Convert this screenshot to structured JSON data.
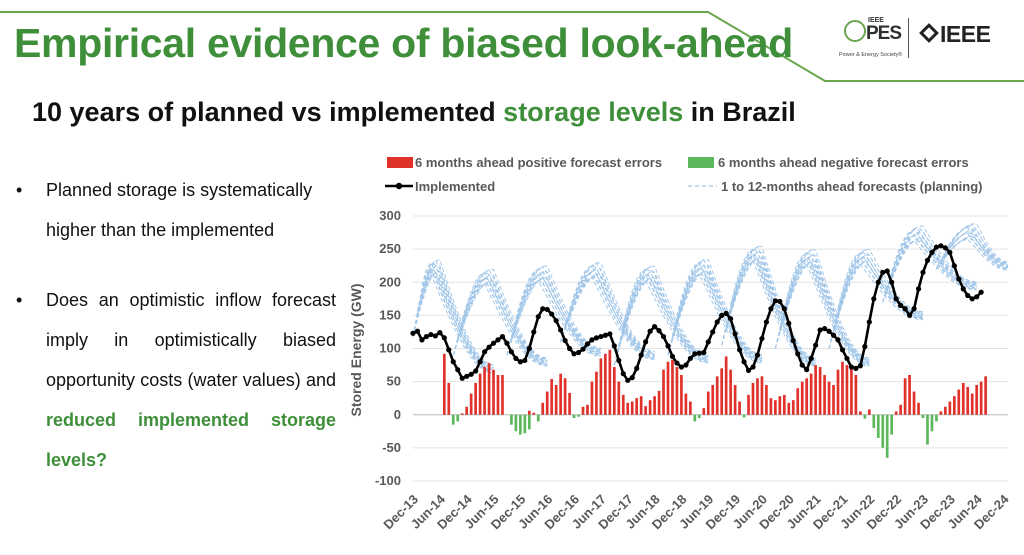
{
  "header": {
    "title": "Empirical evidence of biased look-ahead",
    "logo_pes": {
      "top": "IEEE",
      "name": "PES",
      "sub": "Power & Energy Society®"
    },
    "logo_ieee": "IEEE"
  },
  "subtitle": {
    "part1": "10 years of planned vs implemented ",
    "part2": "storage levels",
    "part3": " in Brazil"
  },
  "bullets": {
    "b1": "Planned storage is systematically higher than the implemented",
    "b2_text": "Does an optimistic inflow forecast imply in optimistically biased opportunity costs (water values) and ",
    "b2_highlight": "reduced implemented storage levels?"
  },
  "colors": {
    "title_green": "#3f8f3a",
    "positive": "#e0312b",
    "negative": "#5cb85c",
    "implemented": "#000000",
    "forecast": "#9fc5e8"
  },
  "chart_data": {
    "type": "bar+line",
    "ylabel": "Stored Energy (GW)",
    "ylim": [
      -100,
      300
    ],
    "yticks": [
      -100,
      -50,
      0,
      50,
      100,
      150,
      200,
      250,
      300
    ],
    "xlabels": [
      "Dec-13",
      "Jun-14",
      "Dec-14",
      "Jun-15",
      "Dec-15",
      "Jun-16",
      "Dec-16",
      "Jun-17",
      "Dec-17",
      "Jun-18",
      "Dec-18",
      "Jun-19",
      "Dec-19",
      "Jun-20",
      "Dec-20",
      "Jun-21",
      "Dec-21",
      "Jun-22",
      "Dec-22",
      "Jun-23",
      "Dec-23",
      "Jun-24",
      "Dec-24"
    ],
    "month_range": {
      "first": "Dec-13",
      "last": "Dec-24",
      "months": 133
    },
    "legend": {
      "positive": "6 months ahead positive forecast errors",
      "negative": "6 months ahead negative forecast errors",
      "implemented": "Implemented",
      "forecast": "1 to 12-months ahead forecasts (planning)"
    },
    "implemented": [
      123,
      126,
      113,
      118,
      121,
      119,
      124,
      116,
      98,
      80,
      68,
      55,
      58,
      61,
      66,
      80,
      95,
      102,
      108,
      113,
      118,
      108,
      95,
      85,
      80,
      82,
      100,
      125,
      148,
      160,
      159,
      152,
      142,
      128,
      112,
      100,
      92,
      94,
      99,
      107,
      113,
      116,
      118,
      120,
      122,
      104,
      82,
      62,
      52,
      56,
      70,
      90,
      110,
      126,
      133,
      127,
      118,
      104,
      88,
      78,
      72,
      75,
      85,
      92,
      93,
      94,
      110,
      125,
      140,
      150,
      153,
      145,
      122,
      98,
      80,
      67,
      72,
      90,
      115,
      140,
      160,
      172,
      171,
      160,
      138,
      112,
      92,
      75,
      68,
      85,
      105,
      128,
      130,
      126,
      120,
      113,
      98,
      85,
      72,
      70,
      74,
      103,
      140,
      175,
      200,
      215,
      217,
      200,
      175,
      165,
      160,
      150,
      160,
      190,
      215,
      233,
      245,
      253,
      255,
      252,
      245,
      225,
      205,
      190,
      180,
      175,
      178,
      185
    ],
    "positive_errors": [
      {
        "month": 7,
        "value": 92
      },
      {
        "month": 8,
        "value": 48
      },
      {
        "month": 11,
        "value": 2
      },
      {
        "month": 12,
        "value": 12
      },
      {
        "month": 13,
        "value": 32
      },
      {
        "month": 14,
        "value": 48
      },
      {
        "month": 15,
        "value": 62
      },
      {
        "month": 16,
        "value": 72
      },
      {
        "month": 17,
        "value": 78
      },
      {
        "month": 18,
        "value": 68
      },
      {
        "month": 19,
        "value": 60
      },
      {
        "month": 20,
        "value": 60
      },
      {
        "month": 26,
        "value": 6
      },
      {
        "month": 27,
        "value": 3
      },
      {
        "month": 29,
        "value": 18
      },
      {
        "month": 30,
        "value": 35
      },
      {
        "month": 31,
        "value": 54
      },
      {
        "month": 32,
        "value": 45
      },
      {
        "month": 33,
        "value": 62
      },
      {
        "month": 34,
        "value": 55
      },
      {
        "month": 35,
        "value": 33
      },
      {
        "month": 38,
        "value": 12
      },
      {
        "month": 39,
        "value": 15
      },
      {
        "month": 40,
        "value": 50
      },
      {
        "month": 41,
        "value": 65
      },
      {
        "month": 42,
        "value": 85
      },
      {
        "month": 43,
        "value": 92
      },
      {
        "month": 44,
        "value": 98
      },
      {
        "month": 45,
        "value": 72
      },
      {
        "month": 46,
        "value": 50
      },
      {
        "month": 47,
        "value": 30
      },
      {
        "month": 48,
        "value": 18
      },
      {
        "month": 49,
        "value": 20
      },
      {
        "month": 50,
        "value": 25
      },
      {
        "month": 51,
        "value": 28
      },
      {
        "month": 52,
        "value": 13
      },
      {
        "month": 53,
        "value": 22
      },
      {
        "month": 54,
        "value": 28
      },
      {
        "month": 55,
        "value": 36
      },
      {
        "month": 56,
        "value": 68
      },
      {
        "month": 57,
        "value": 80
      },
      {
        "month": 58,
        "value": 83
      },
      {
        "month": 59,
        "value": 72
      },
      {
        "month": 60,
        "value": 60
      },
      {
        "month": 61,
        "value": 32
      },
      {
        "month": 62,
        "value": 20
      },
      {
        "month": 65,
        "value": 10
      },
      {
        "month": 66,
        "value": 35
      },
      {
        "month": 67,
        "value": 45
      },
      {
        "month": 68,
        "value": 58
      },
      {
        "month": 69,
        "value": 70
      },
      {
        "month": 70,
        "value": 88
      },
      {
        "month": 71,
        "value": 68
      },
      {
        "month": 72,
        "value": 45
      },
      {
        "month": 73,
        "value": 20
      },
      {
        "month": 75,
        "value": 30
      },
      {
        "month": 76,
        "value": 48
      },
      {
        "month": 77,
        "value": 55
      },
      {
        "month": 78,
        "value": 58
      },
      {
        "month": 79,
        "value": 45
      },
      {
        "month": 80,
        "value": 25
      },
      {
        "month": 81,
        "value": 22
      },
      {
        "month": 82,
        "value": 28
      },
      {
        "month": 83,
        "value": 30
      },
      {
        "month": 84,
        "value": 18
      },
      {
        "month": 85,
        "value": 22
      },
      {
        "month": 86,
        "value": 40
      },
      {
        "month": 87,
        "value": 50
      },
      {
        "month": 88,
        "value": 55
      },
      {
        "month": 89,
        "value": 62
      },
      {
        "month": 90,
        "value": 75
      },
      {
        "month": 91,
        "value": 72
      },
      {
        "month": 92,
        "value": 60
      },
      {
        "month": 93,
        "value": 50
      },
      {
        "month": 94,
        "value": 45
      },
      {
        "month": 95,
        "value": 68
      },
      {
        "month": 96,
        "value": 80
      },
      {
        "month": 97,
        "value": 75
      },
      {
        "month": 98,
        "value": 70
      },
      {
        "month": 99,
        "value": 60
      },
      {
        "month": 100,
        "value": 5
      },
      {
        "month": 102,
        "value": 8
      },
      {
        "month": 108,
        "value": 5
      },
      {
        "month": 109,
        "value": 15
      },
      {
        "month": 110,
        "value": 55
      },
      {
        "month": 111,
        "value": 60
      },
      {
        "month": 112,
        "value": 35
      },
      {
        "month": 113,
        "value": 18
      },
      {
        "month": 118,
        "value": 5
      },
      {
        "month": 119,
        "value": 12
      },
      {
        "month": 120,
        "value": 20
      },
      {
        "month": 121,
        "value": 28
      },
      {
        "month": 122,
        "value": 38
      },
      {
        "month": 123,
        "value": 48
      },
      {
        "month": 124,
        "value": 42
      },
      {
        "month": 125,
        "value": 32
      },
      {
        "month": 126,
        "value": 45
      },
      {
        "month": 127,
        "value": 50
      },
      {
        "month": 128,
        "value": 58
      }
    ],
    "negative_errors": [
      {
        "month": 9,
        "value": -15
      },
      {
        "month": 10,
        "value": -10
      },
      {
        "month": 22,
        "value": -15
      },
      {
        "month": 23,
        "value": -25
      },
      {
        "month": 24,
        "value": -30
      },
      {
        "month": 25,
        "value": -28
      },
      {
        "month": 26,
        "value": -22
      },
      {
        "month": 28,
        "value": -10
      },
      {
        "month": 36,
        "value": -5
      },
      {
        "month": 37,
        "value": -3
      },
      {
        "month": 63,
        "value": -10
      },
      {
        "month": 64,
        "value": -5
      },
      {
        "month": 74,
        "value": -4
      },
      {
        "month": 101,
        "value": -6
      },
      {
        "month": 103,
        "value": -20
      },
      {
        "month": 104,
        "value": -35
      },
      {
        "month": 105,
        "value": -50
      },
      {
        "month": 106,
        "value": -65
      },
      {
        "month": 107,
        "value": -30
      },
      {
        "month": 114,
        "value": -5
      },
      {
        "month": 115,
        "value": -45
      },
      {
        "month": 116,
        "value": -25
      },
      {
        "month": 117,
        "value": -10
      }
    ],
    "forecast_family": {
      "description_values": "planning forecast curves, 1 to 12 months ahead, one family per year",
      "families": [
        {
          "start_month": 0,
          "start_value": 118,
          "peak_month": 5,
          "peak_value": 225,
          "end_month": 18,
          "end_value": 70,
          "n_curves": 12
        },
        {
          "start_month": 9,
          "start_value": 90,
          "peak_month": 17,
          "peak_value": 210,
          "end_month": 30,
          "end_value": 80,
          "n_curves": 12
        },
        {
          "start_month": 21,
          "start_value": 90,
          "peak_month": 29,
          "peak_value": 215,
          "end_month": 42,
          "end_value": 95,
          "n_curves": 12
        },
        {
          "start_month": 33,
          "start_value": 110,
          "peak_month": 41,
          "peak_value": 220,
          "end_month": 54,
          "end_value": 90,
          "n_curves": 12
        },
        {
          "start_month": 45,
          "start_value": 75,
          "peak_month": 53,
          "peak_value": 215,
          "end_month": 66,
          "end_value": 85,
          "n_curves": 12
        },
        {
          "start_month": 57,
          "start_value": 90,
          "peak_month": 65,
          "peak_value": 225,
          "end_month": 78,
          "end_value": 85,
          "n_curves": 12
        },
        {
          "start_month": 69,
          "start_value": 105,
          "peak_month": 77,
          "peak_value": 245,
          "end_month": 90,
          "end_value": 80,
          "n_curves": 12
        },
        {
          "start_month": 81,
          "start_value": 100,
          "peak_month": 89,
          "peak_value": 240,
          "end_month": 102,
          "end_value": 80,
          "n_curves": 12
        },
        {
          "start_month": 93,
          "start_value": 100,
          "peak_month": 101,
          "peak_value": 240,
          "end_month": 114,
          "end_value": 150,
          "n_curves": 12
        },
        {
          "start_month": 105,
          "start_value": 170,
          "peak_month": 113,
          "peak_value": 275,
          "end_month": 126,
          "end_value": 195,
          "n_curves": 12
        },
        {
          "start_month": 117,
          "start_value": 220,
          "peak_month": 125,
          "peak_value": 278,
          "end_month": 133,
          "end_value": 225,
          "n_curves": 12
        }
      ]
    }
  }
}
